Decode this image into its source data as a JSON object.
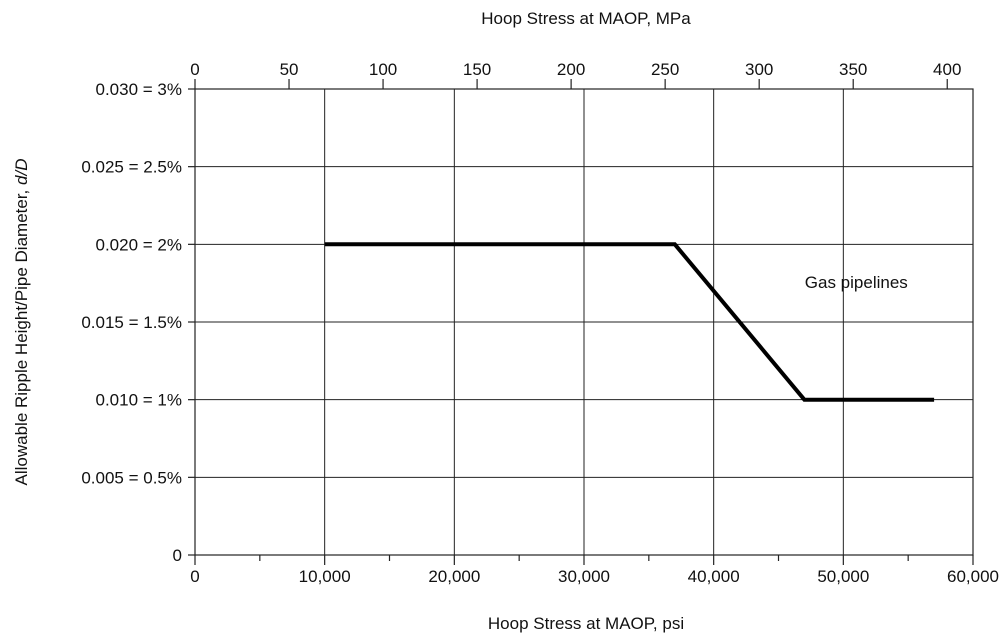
{
  "chart_data": {
    "type": "line",
    "x_bottom": {
      "label": "Hoop Stress at MAOP, psi",
      "range": [
        0,
        60000
      ],
      "ticks": [
        0,
        10000,
        20000,
        30000,
        40000,
        50000,
        60000
      ],
      "tick_labels": [
        "0",
        "10,000",
        "20,000",
        "30,000",
        "40,000",
        "50,000",
        "60,000"
      ],
      "minor_ticks": [
        5000,
        15000,
        25000,
        35000,
        45000,
        55000
      ]
    },
    "x_top": {
      "label": "Hoop Stress at MAOP, MPa",
      "range": [
        0,
        413.7
      ],
      "ticks": [
        0,
        50,
        100,
        150,
        200,
        250,
        300,
        350,
        400
      ],
      "tick_labels": [
        "0",
        "50",
        "100",
        "150",
        "200",
        "250",
        "300",
        "350",
        "400"
      ]
    },
    "y": {
      "label_main": "Allowable Ripple Height/Pipe Diameter, ",
      "label_italic": "d/D",
      "range": [
        0,
        0.03
      ],
      "ticks": [
        0,
        0.005,
        0.01,
        0.015,
        0.02,
        0.025,
        0.03
      ],
      "tick_labels": [
        "0",
        "0.005 = 0.5%",
        "0.010 = 1%",
        "0.015 = 1.5%",
        "0.020 = 2%",
        "0.025 = 2.5%",
        "0.030 = 3%"
      ]
    },
    "grid": true,
    "series": [
      {
        "x": [
          10000,
          37000,
          47000,
          57000
        ],
        "y": [
          0.02,
          0.02,
          0.01,
          0.01
        ]
      }
    ],
    "annotation": {
      "text": "Gas pipelines",
      "x": 51000,
      "y": 0.0172
    }
  }
}
